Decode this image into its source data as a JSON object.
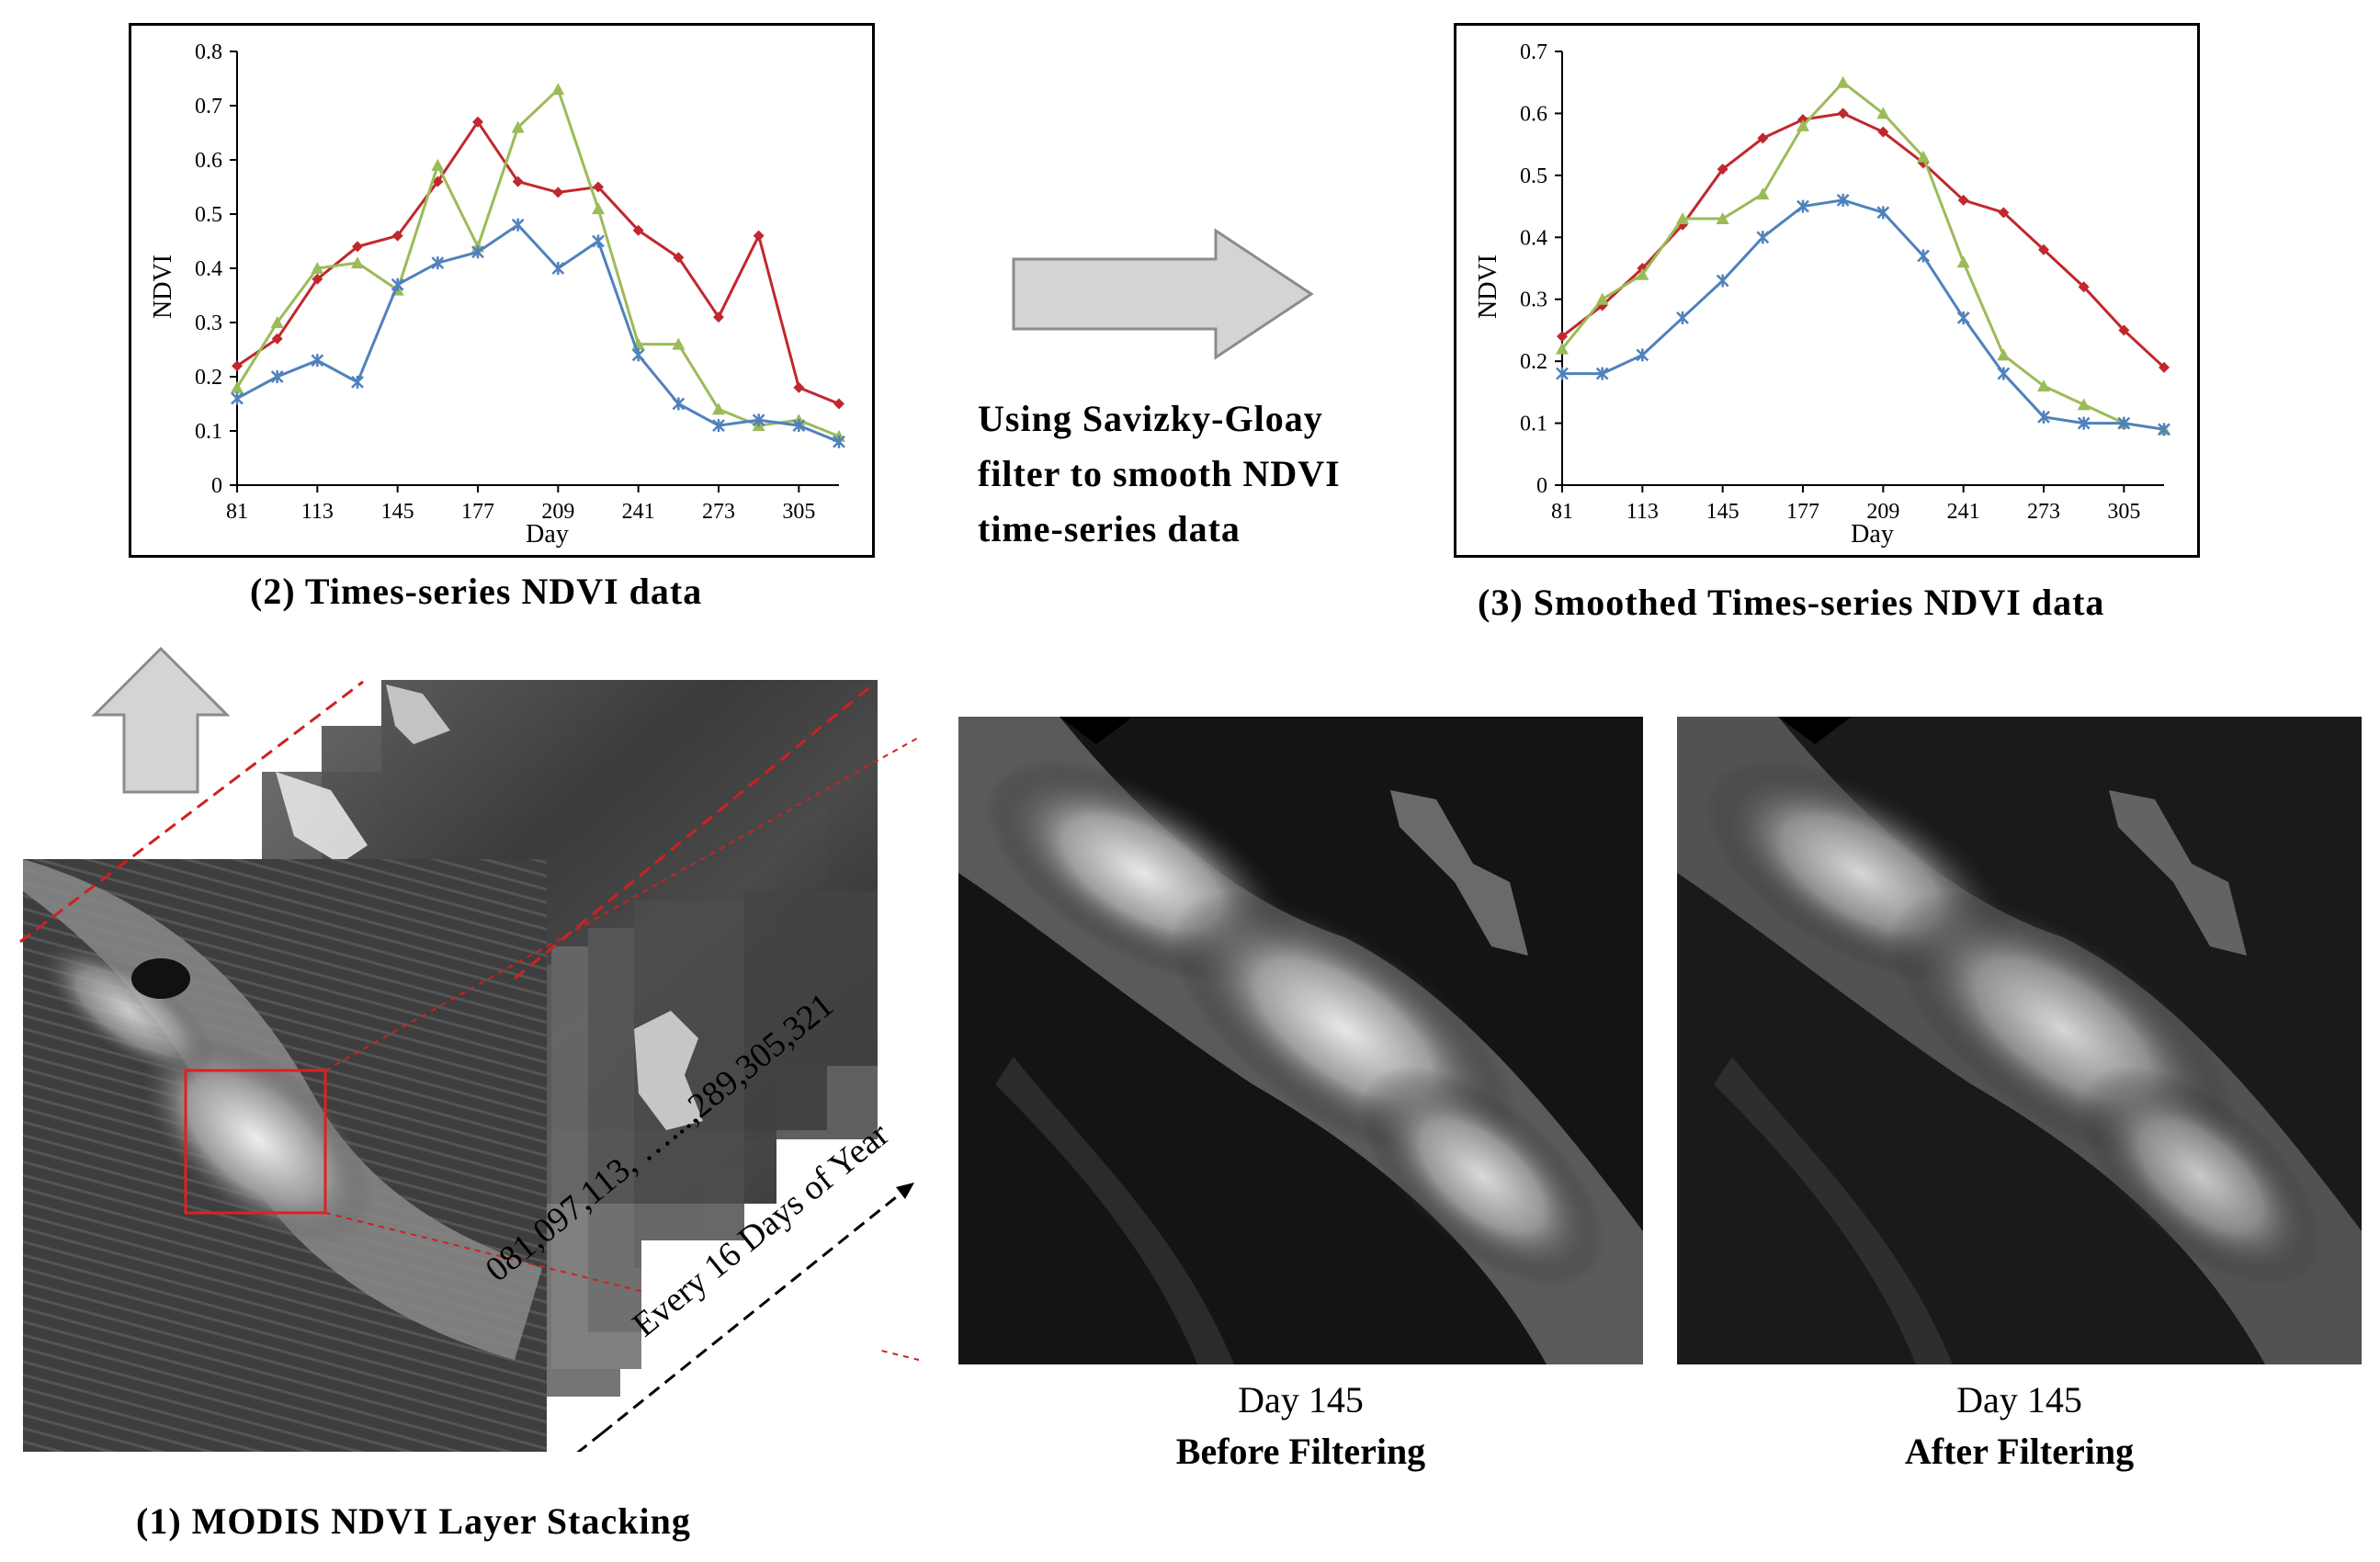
{
  "chart_data": [
    {
      "type": "line",
      "xlabel": "Day",
      "ylabel": "NDVI",
      "ylim": [
        0,
        0.8
      ],
      "yticks": [
        0,
        0.1,
        0.2,
        0.3,
        0.4,
        0.5,
        0.6,
        0.7,
        0.8
      ],
      "ytick_labels": [
        "0",
        "0.1",
        "0.2",
        "0.3",
        "0.4",
        "0.5",
        "0.6",
        "0.7",
        "0.8"
      ],
      "xlim": [
        81,
        321
      ],
      "xticks": [
        81,
        113,
        145,
        177,
        209,
        241,
        273,
        305
      ],
      "x": [
        81,
        97,
        113,
        129,
        145,
        161,
        177,
        193,
        209,
        225,
        241,
        257,
        273,
        289,
        305,
        321
      ],
      "series": [
        {
          "color": "#c0282e",
          "marker": "diamond",
          "values": [
            0.22,
            0.27,
            0.38,
            0.44,
            0.46,
            0.56,
            0.67,
            0.56,
            0.54,
            0.55,
            0.47,
            0.42,
            0.31,
            0.46,
            0.18,
            0.15
          ]
        },
        {
          "color": "#9bbb59",
          "marker": "triangle",
          "values": [
            0.18,
            0.3,
            0.4,
            0.41,
            0.36,
            0.59,
            0.44,
            0.66,
            0.73,
            0.51,
            0.26,
            0.26,
            0.14,
            0.11,
            0.12,
            0.09
          ]
        },
        {
          "color": "#4f81bd",
          "marker": "star",
          "values": [
            0.16,
            0.2,
            0.23,
            0.19,
            0.37,
            0.41,
            0.43,
            0.48,
            0.4,
            0.45,
            0.24,
            0.15,
            0.11,
            0.12,
            0.11,
            0.08
          ]
        }
      ]
    },
    {
      "type": "line",
      "xlabel": "Day",
      "ylabel": "NDVI",
      "ylim": [
        0,
        0.7
      ],
      "yticks": [
        0,
        0.1,
        0.2,
        0.3,
        0.4,
        0.5,
        0.6,
        0.7
      ],
      "ytick_labels": [
        "0",
        "0.1",
        "0.2",
        "0.3",
        "0.4",
        "0.5",
        "0.6",
        "0.7"
      ],
      "xlim": [
        81,
        321
      ],
      "xticks": [
        81,
        113,
        145,
        177,
        209,
        241,
        273,
        305
      ],
      "x": [
        81,
        97,
        113,
        129,
        145,
        161,
        177,
        193,
        209,
        225,
        241,
        257,
        273,
        289,
        305,
        321
      ],
      "series": [
        {
          "color": "#c0282e",
          "marker": "diamond",
          "values": [
            0.24,
            0.29,
            0.35,
            0.42,
            0.51,
            0.56,
            0.59,
            0.6,
            0.57,
            0.52,
            0.46,
            0.44,
            0.38,
            0.32,
            0.25,
            0.19
          ]
        },
        {
          "color": "#9bbb59",
          "marker": "triangle",
          "values": [
            0.22,
            0.3,
            0.34,
            0.43,
            0.43,
            0.47,
            0.58,
            0.65,
            0.6,
            0.53,
            0.36,
            0.21,
            0.16,
            0.13,
            0.1,
            0.09
          ]
        },
        {
          "color": "#4f81bd",
          "marker": "star",
          "values": [
            0.18,
            0.18,
            0.21,
            0.27,
            0.33,
            0.4,
            0.45,
            0.46,
            0.44,
            0.37,
            0.27,
            0.18,
            0.11,
            0.1,
            0.1,
            0.09
          ]
        }
      ]
    }
  ],
  "captions": {
    "chart1": "(2) Times-series NDVI data",
    "chart2": "(3) Smoothed Times-series NDVI data",
    "stacking": "(1) MODIS NDVI Layer Stacking"
  },
  "filter_note": {
    "line1": "Using Savizky-Gloay",
    "line2": "filter to smooth NDVI",
    "line3": "time-series data"
  },
  "stack_labels": {
    "days": "081,097,113, …...,289,305,321",
    "interval": "Every 16 Days of Year"
  },
  "panels": {
    "before": {
      "day": "Day 145",
      "label": "Before Filtering"
    },
    "after": {
      "day": "Day 145",
      "label": "After Filtering"
    }
  }
}
